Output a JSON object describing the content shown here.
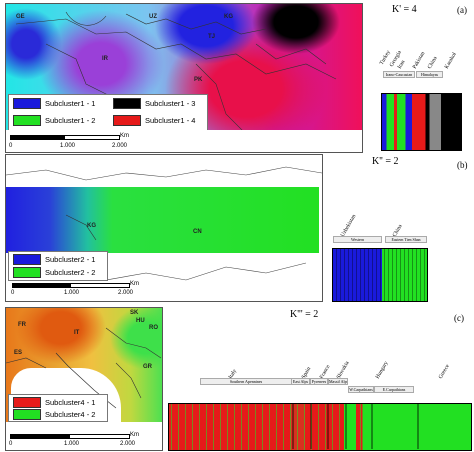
{
  "panel_a": {
    "map_labels": [
      "GE",
      "UZ",
      "KG",
      "TJ",
      "IR",
      "PK"
    ],
    "legend": [
      {
        "label": "Subcluster1 - 1",
        "color": "#1a1adc"
      },
      {
        "label": "Subcluster1 - 3",
        "color": "#000000"
      },
      {
        "label": "Subcluster1 - 2",
        "color": "#22e022"
      },
      {
        "label": "Subcluster1 - 4",
        "color": "#e61a1a"
      }
    ],
    "scale": {
      "zero": "0",
      "mid": "1.000",
      "end": "2.000",
      "unit": "Km"
    },
    "k_label": "K' = 4",
    "panel_letter": "(a)",
    "pops": [
      "Turkey",
      "Georgia",
      "Iran",
      "Pakistan",
      "China",
      "Karakol"
    ],
    "regions": [
      "Irano-Caucasian",
      "Himalayas"
    ]
  },
  "panel_b": {
    "map_labels": [
      "KG",
      "CN"
    ],
    "legend": [
      {
        "label": "Subcluster2 - 1",
        "color": "#1a1adc"
      },
      {
        "label": "Subcluster2 - 2",
        "color": "#22e022"
      }
    ],
    "scale": {
      "zero": "0",
      "mid": "1.000",
      "end": "2.000",
      "unit": "Km"
    },
    "k_label": "K'' = 2",
    "panel_letter": "(b)",
    "pops": [
      "Uzbekistan",
      "China"
    ],
    "regions": [
      "Western",
      "Eastern Tien Shan"
    ]
  },
  "panel_c": {
    "map_labels": [
      "FR",
      "IT",
      "ES",
      "SK",
      "HU",
      "RO",
      "GR"
    ],
    "legend": [
      {
        "label": "Subcluster4 - 1",
        "color": "#e61a1a"
      },
      {
        "label": "Subcluster4 - 2",
        "color": "#22e022"
      }
    ],
    "scale": {
      "zero": "0",
      "mid": "1.000",
      "end": "2.000",
      "unit": "Km"
    },
    "k_label": "K''' = 2",
    "panel_letter": "(c)",
    "pops": [
      "Italy",
      "Spain",
      "France",
      "Slovakia",
      "Hungary",
      "Greece"
    ],
    "regions": [
      "Southern Apennines",
      "East Alps",
      "Pyrenees",
      "Massif Alps",
      "W.Carpathians",
      "E.Carpathians"
    ]
  }
}
